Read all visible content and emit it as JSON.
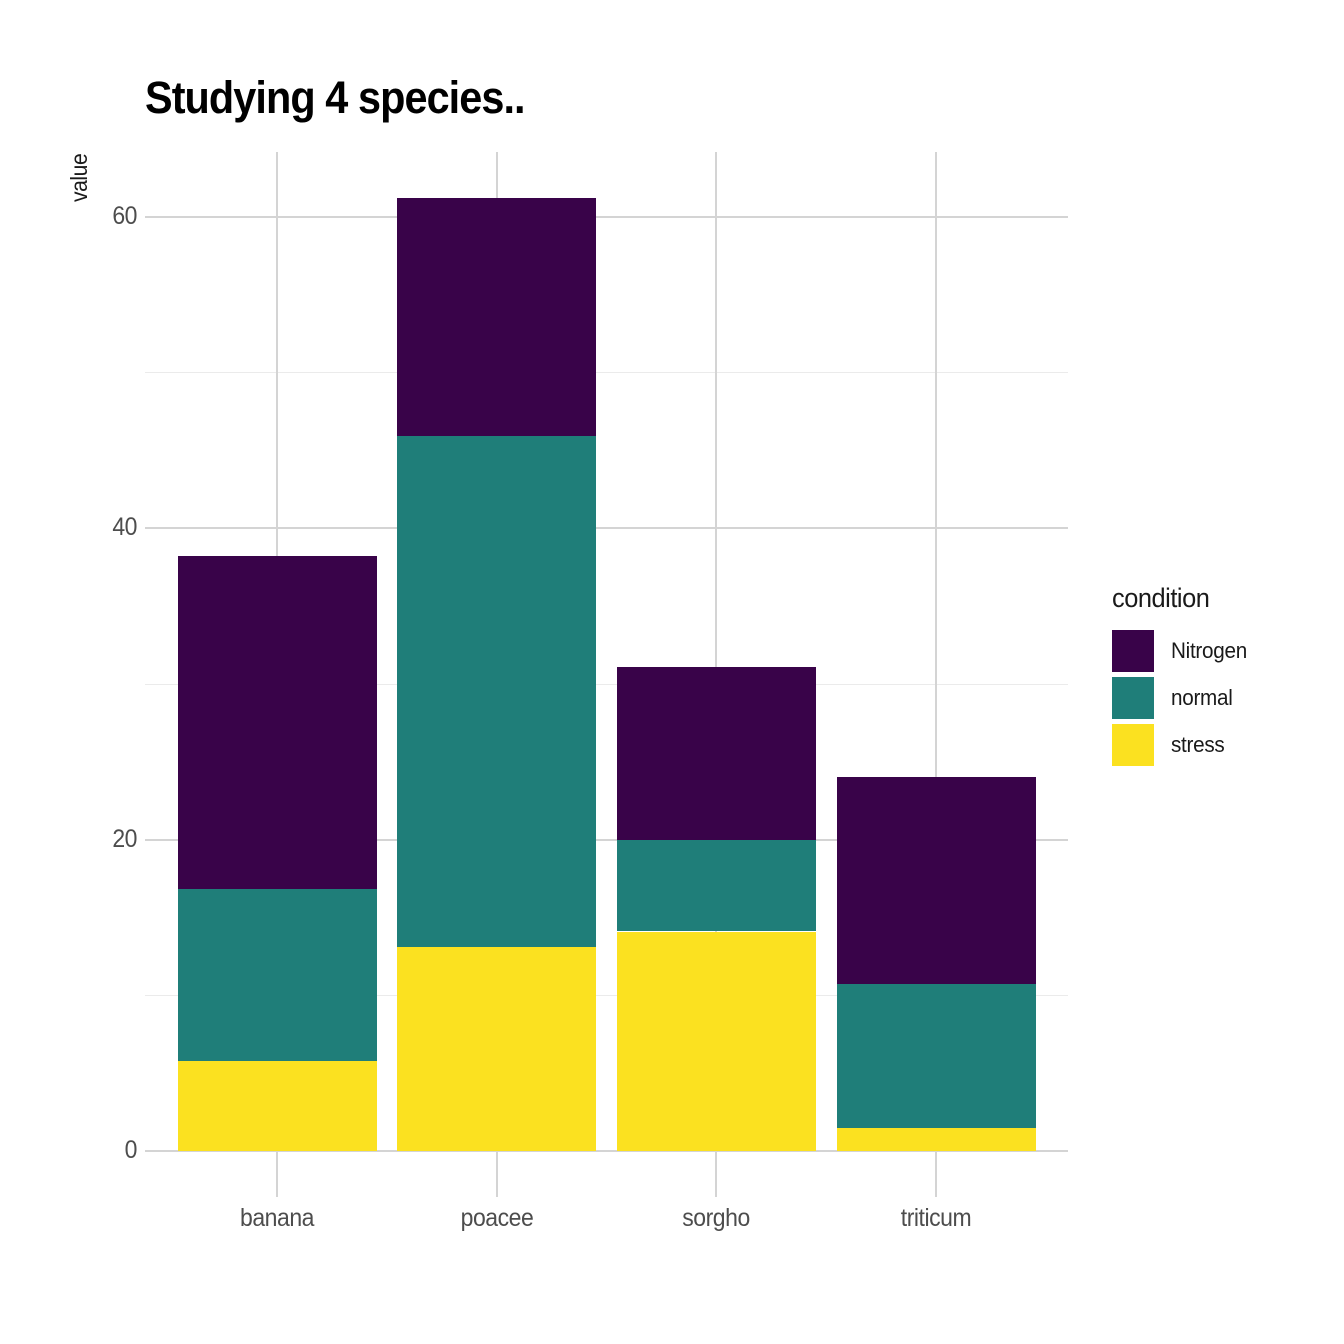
{
  "chart_data": {
    "type": "bar",
    "stacked": true,
    "title": "Studying 4 species..",
    "ylabel": "value",
    "xlabel": "",
    "categories": [
      "banana",
      "poacee",
      "sorgho",
      "triticum"
    ],
    "series": [
      {
        "name": "stress",
        "color": "#FBE120",
        "values": [
          5.8,
          13.1,
          14.1,
          1.5
        ]
      },
      {
        "name": "normal",
        "color": "#1F7E79",
        "values": [
          11.0,
          32.8,
          5.9,
          9.2
        ]
      },
      {
        "name": "Nitrogen",
        "color": "#390349",
        "values": [
          21.4,
          15.3,
          11.1,
          13.3
        ]
      }
    ],
    "totals": [
      38.2,
      61.2,
      31.1,
      24.0
    ],
    "yticks": [
      0,
      20,
      40,
      60
    ],
    "minor_yticks": [
      10,
      30,
      50
    ],
    "ylim": [
      -3.1,
      64.3
    ],
    "grid": true,
    "legend": {
      "title": "condition",
      "position": "right",
      "entries": [
        {
          "label": "Nitrogen",
          "color": "#390349"
        },
        {
          "label": "normal",
          "color": "#1F7E79"
        },
        {
          "label": "stress",
          "color": "#FBE120"
        }
      ]
    }
  }
}
